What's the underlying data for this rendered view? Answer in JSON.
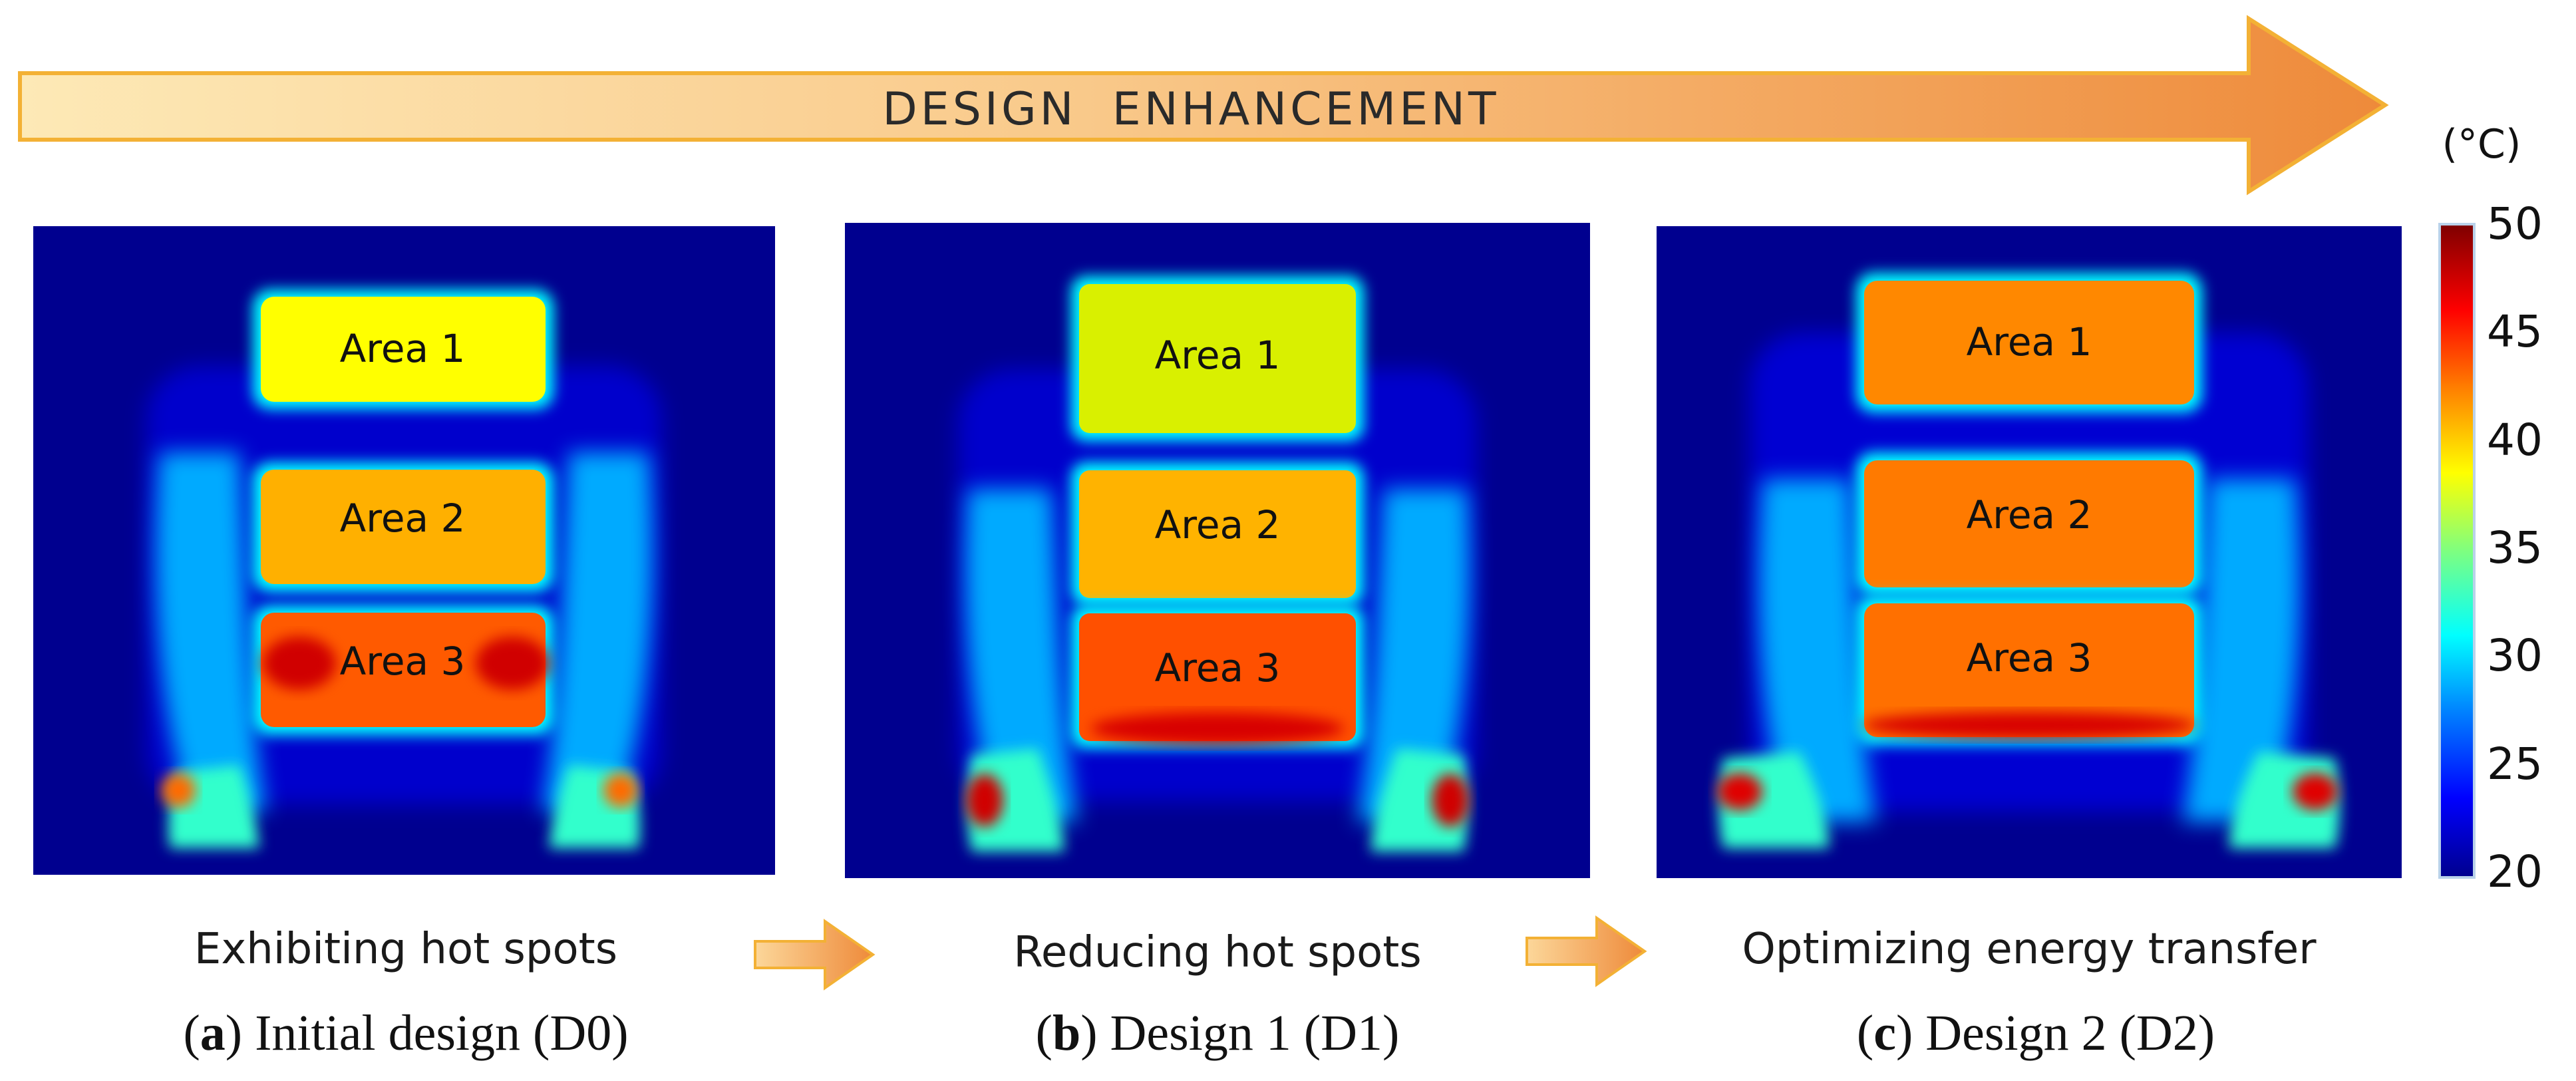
{
  "banner": {
    "label": "DESIGN  ENHANCEMENT"
  },
  "colorbar": {
    "unit": "(°C)",
    "ticks": [
      "50",
      "45",
      "40",
      "35",
      "30",
      "25",
      "20"
    ],
    "range": [
      20,
      50
    ]
  },
  "panels": [
    {
      "areas": [
        {
          "label": "Area 1",
          "temp_c": 39
        },
        {
          "label": "Area 2",
          "temp_c": 41
        },
        {
          "label": "Area 3",
          "temp_c": 45
        }
      ],
      "caption": "Exhibiting hot spots",
      "letter": "a",
      "title": " Initial design (D0)"
    },
    {
      "areas": [
        {
          "label": "Area 1",
          "temp_c": 38
        },
        {
          "label": "Area 2",
          "temp_c": 42
        },
        {
          "label": "Area 3",
          "temp_c": 45
        }
      ],
      "caption": "Reducing hot spots",
      "letter": "b",
      "title": " Design 1 (D1)"
    },
    {
      "areas": [
        {
          "label": "Area 1",
          "temp_c": 44
        },
        {
          "label": "Area 2",
          "temp_c": 44
        },
        {
          "label": "Area 3",
          "temp_c": 44
        }
      ],
      "caption": "Optimizing energy transfer",
      "letter": "c",
      "title": " Design 2 (D2)"
    }
  ]
}
